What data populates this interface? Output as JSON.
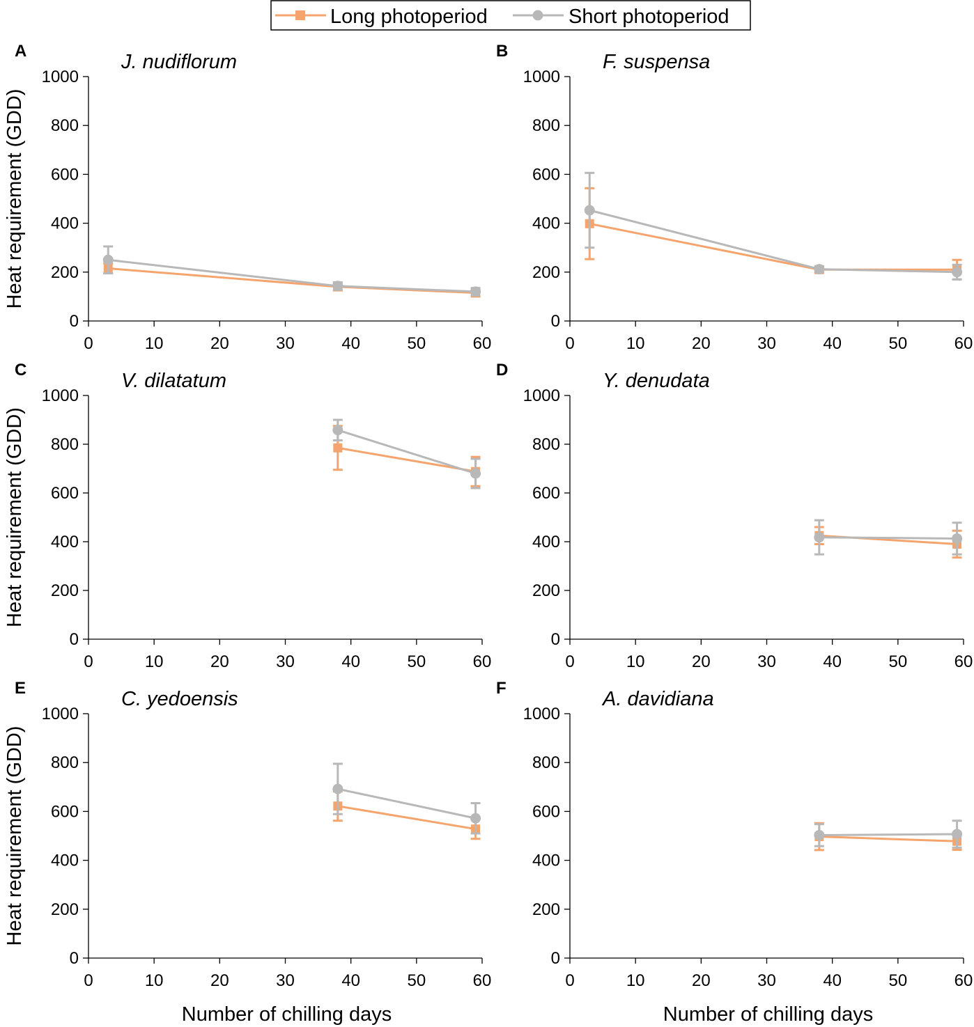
{
  "legend": {
    "entries": [
      {
        "label": "Long photoperiod",
        "color": "#f4a46c",
        "marker": "square"
      },
      {
        "label": "Short photoperiod",
        "color": "#b8b8b8",
        "marker": "circle"
      }
    ]
  },
  "chart_data": [
    {
      "type": "line",
      "panel": "A",
      "title": "J. nudiflorum",
      "xlabel": "",
      "ylabel": "Heat requirement (GDD)",
      "xlim": [
        0,
        60
      ],
      "ylim": [
        0,
        1000
      ],
      "xticks": [
        0,
        10,
        20,
        30,
        40,
        50,
        60
      ],
      "yticks": [
        0,
        200,
        400,
        600,
        800,
        1000
      ],
      "series": [
        {
          "name": "Long photoperiod",
          "color": "#f4a46c",
          "marker": "square",
          "x": [
            3,
            38,
            59
          ],
          "y": [
            215,
            140,
            115
          ],
          "err": [
            20,
            15,
            15
          ]
        },
        {
          "name": "Short photoperiod",
          "color": "#b8b8b8",
          "marker": "circle",
          "x": [
            3,
            38,
            59
          ],
          "y": [
            250,
            143,
            120
          ],
          "err": [
            55,
            15,
            15
          ]
        }
      ]
    },
    {
      "type": "line",
      "panel": "B",
      "title": "F. suspensa",
      "xlabel": "",
      "ylabel": "",
      "xlim": [
        0,
        60
      ],
      "ylim": [
        0,
        1000
      ],
      "xticks": [
        0,
        10,
        20,
        30,
        40,
        50,
        60
      ],
      "yticks": [
        0,
        200,
        400,
        600,
        800,
        1000
      ],
      "series": [
        {
          "name": "Long photoperiod",
          "color": "#f4a46c",
          "marker": "square",
          "x": [
            3,
            38,
            59
          ],
          "y": [
            398,
            210,
            210
          ],
          "err": [
            145,
            12,
            40
          ]
        },
        {
          "name": "Short photoperiod",
          "color": "#b8b8b8",
          "marker": "circle",
          "x": [
            3,
            38,
            59
          ],
          "y": [
            453,
            212,
            200
          ],
          "err": [
            153,
            12,
            30
          ]
        }
      ]
    },
    {
      "type": "line",
      "panel": "C",
      "title": "V. dilatatum",
      "xlabel": "",
      "ylabel": "Heat requirement (GDD)",
      "xlim": [
        0,
        60
      ],
      "ylim": [
        0,
        1000
      ],
      "xticks": [
        0,
        10,
        20,
        30,
        40,
        50,
        60
      ],
      "yticks": [
        0,
        200,
        400,
        600,
        800,
        1000
      ],
      "series": [
        {
          "name": "Long photoperiod",
          "color": "#f4a46c",
          "marker": "square",
          "x": [
            38,
            59
          ],
          "y": [
            785,
            688
          ],
          "err": [
            90,
            60
          ]
        },
        {
          "name": "Short photoperiod",
          "color": "#b8b8b8",
          "marker": "circle",
          "x": [
            38,
            59
          ],
          "y": [
            858,
            680
          ],
          "err": [
            42,
            60
          ]
        }
      ]
    },
    {
      "type": "line",
      "panel": "D",
      "title": "Y. denudata",
      "xlabel": "",
      "ylabel": "",
      "xlim": [
        0,
        60
      ],
      "ylim": [
        0,
        1000
      ],
      "xticks": [
        0,
        10,
        20,
        30,
        40,
        50,
        60
      ],
      "yticks": [
        0,
        200,
        400,
        600,
        800,
        1000
      ],
      "series": [
        {
          "name": "Long photoperiod",
          "color": "#f4a46c",
          "marker": "square",
          "x": [
            38,
            59
          ],
          "y": [
            425,
            390
          ],
          "err": [
            35,
            55
          ]
        },
        {
          "name": "Short photoperiod",
          "color": "#b8b8b8",
          "marker": "circle",
          "x": [
            38,
            59
          ],
          "y": [
            418,
            413
          ],
          "err": [
            70,
            65
          ]
        }
      ]
    },
    {
      "type": "line",
      "panel": "E",
      "title": "C. yedoensis",
      "xlabel": "Number of chilling days",
      "ylabel": "Heat requirement (GDD)",
      "xlim": [
        0,
        60
      ],
      "ylim": [
        0,
        1000
      ],
      "xticks": [
        0,
        10,
        20,
        30,
        40,
        50,
        60
      ],
      "yticks": [
        0,
        200,
        400,
        600,
        800,
        1000
      ],
      "series": [
        {
          "name": "Long photoperiod",
          "color": "#f4a46c",
          "marker": "square",
          "x": [
            38,
            59
          ],
          "y": [
            622,
            528
          ],
          "err": [
            60,
            40
          ]
        },
        {
          "name": "Short photoperiod",
          "color": "#b8b8b8",
          "marker": "circle",
          "x": [
            38,
            59
          ],
          "y": [
            692,
            572
          ],
          "err": [
            103,
            62
          ]
        }
      ]
    },
    {
      "type": "line",
      "panel": "F",
      "title": "A. davidiana",
      "xlabel": "Number of chilling days",
      "ylabel": "",
      "xlim": [
        0,
        60
      ],
      "ylim": [
        0,
        1000
      ],
      "xticks": [
        0,
        10,
        20,
        30,
        40,
        50,
        60
      ],
      "yticks": [
        0,
        200,
        400,
        600,
        800,
        1000
      ],
      "series": [
        {
          "name": "Long photoperiod",
          "color": "#f4a46c",
          "marker": "square",
          "x": [
            38,
            59
          ],
          "y": [
            497,
            478
          ],
          "err": [
            55,
            35
          ]
        },
        {
          "name": "Short photoperiod",
          "color": "#b8b8b8",
          "marker": "circle",
          "x": [
            38,
            59
          ],
          "y": [
            503,
            507
          ],
          "err": [
            45,
            55
          ]
        }
      ]
    }
  ]
}
